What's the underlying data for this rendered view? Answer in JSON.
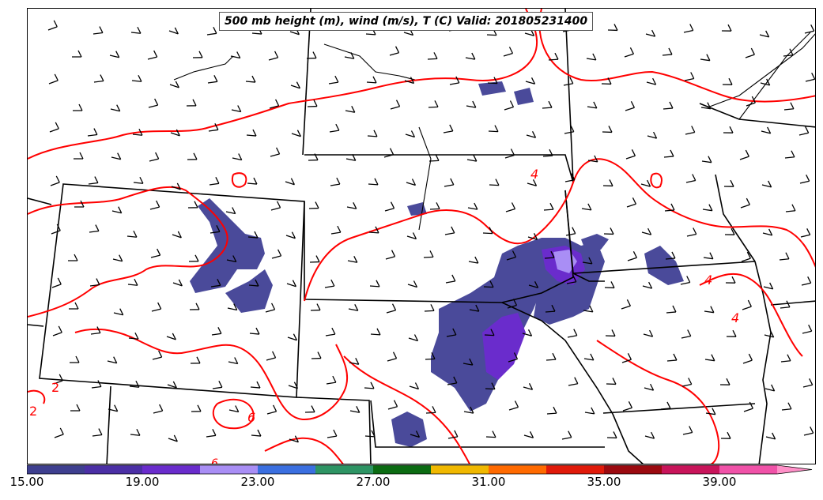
{
  "title": "500 mb height (m), wind (m/s), T (C) Valid: 201805231400",
  "colorbar": {
    "tick_labels": [
      "15.00",
      "19.00",
      "23.00",
      "27.00",
      "31.00",
      "35.00",
      "39.00"
    ],
    "colors": [
      "#3e3f8f",
      "#4b2fa5",
      "#6a2ccc",
      "#a98ef5",
      "#3b6fe0",
      "#2e9464",
      "#0b6b12",
      "#f0b800",
      "#ff6a00",
      "#e01a0a",
      "#9b0a10",
      "#c8145a",
      "#f052a8",
      "#ff90c8"
    ]
  },
  "contour_labels": [
    "2",
    "2",
    "4",
    "4",
    "4",
    "6",
    "6"
  ],
  "colors": {
    "temperature_contour": "#ff0000",
    "borders": "#000000",
    "precip_low": "#4a4a9a",
    "precip_mid": "#6a2ccc",
    "precip_high": "#a98ef5"
  }
}
